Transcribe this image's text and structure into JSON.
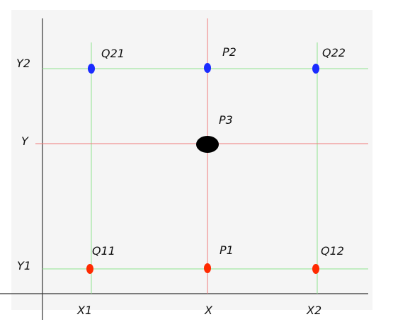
{
  "diagram": {
    "colors": {
      "background_panel": "#f5f5f5",
      "grid_green": "#8fe38f",
      "grid_red": "#f07a7a",
      "axis": "#333333",
      "point_red": "#ff2a00",
      "point_blue": "#1a2cff",
      "point_black": "#000000"
    },
    "labels": {
      "y2": "Y2",
      "y": "Y",
      "y1": "Y1",
      "x1": "X1",
      "x": "X",
      "x2": "X2",
      "q21": "Q21",
      "p2": "P2",
      "q22": "Q22",
      "p3": "P3",
      "q11": "Q11",
      "p1": "P1",
      "q12": "Q12"
    }
  }
}
